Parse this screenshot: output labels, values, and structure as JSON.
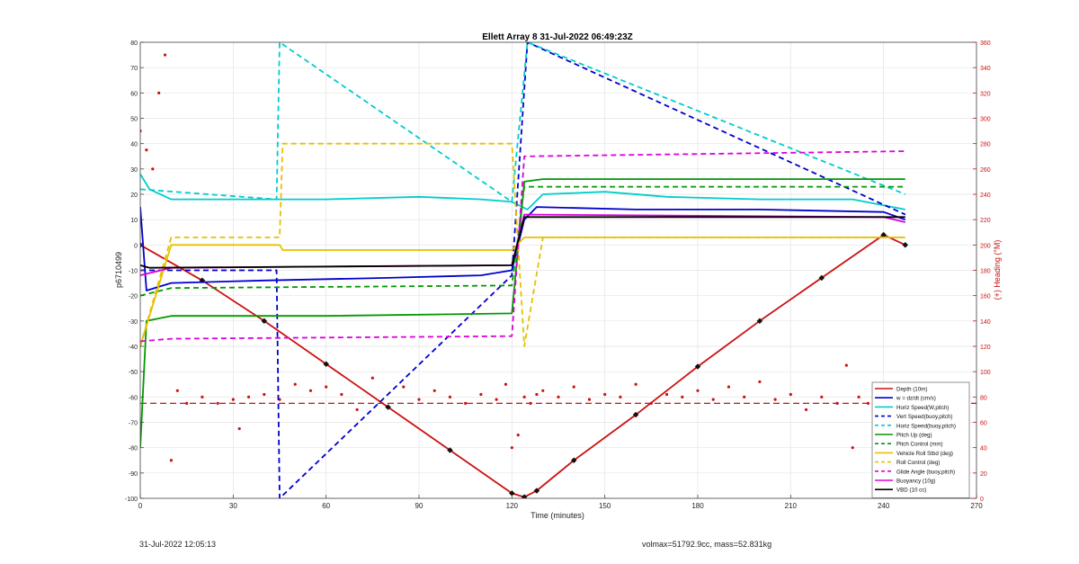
{
  "chart_data": {
    "type": "line",
    "title": "Ellett Array 8 31-Jul-2022 06:49:23Z",
    "xlabel": "Time (minutes)",
    "ylabel_left": "p6710499",
    "ylabel_right": "(+) Heading (°M)",
    "xlim": [
      0,
      270
    ],
    "ylim_left": [
      -100,
      80
    ],
    "ylim_right": [
      0,
      360
    ],
    "x_ticks": [
      0,
      30,
      60,
      90,
      120,
      150,
      180,
      210,
      240,
      270
    ],
    "y_ticks_left": [
      80,
      70,
      60,
      50,
      40,
      30,
      20,
      10,
      0,
      -10,
      -20,
      -30,
      -40,
      -50,
      -60,
      -70,
      -80,
      -90,
      -100
    ],
    "y_ticks_right": [
      360,
      340,
      320,
      300,
      280,
      260,
      240,
      220,
      200,
      180,
      160,
      140,
      120,
      100,
      80,
      60,
      40,
      20,
      0
    ],
    "grid": true,
    "legend_position": "bottom-right",
    "series": [
      {
        "name": "Depth (10m)",
        "color": "#cc1111",
        "style": "solid",
        "marker": "diamond",
        "x": [
          0,
          20,
          40,
          60,
          80,
          100,
          120,
          124,
          128,
          140,
          160,
          180,
          200,
          220,
          240,
          247
        ],
        "y": [
          0,
          -14,
          -30,
          -47,
          -64,
          -81,
          -98,
          -99.5,
          -97,
          -85,
          -67,
          -48,
          -30,
          -13,
          4,
          0
        ]
      },
      {
        "name": "w = dz/dt (cm/s)",
        "color": "#0000cc",
        "style": "solid",
        "x": [
          0,
          2,
          10,
          40,
          80,
          110,
          120,
          124,
          128,
          160,
          200,
          240,
          247
        ],
        "y": [
          15,
          -18,
          -15,
          -14,
          -13,
          -12,
          -10,
          10,
          15,
          14,
          14,
          13,
          10
        ]
      },
      {
        "name": "Horiz Speed(W,pitch)",
        "color": "#00cccc",
        "style": "solid",
        "x": [
          0,
          3,
          10,
          30,
          60,
          90,
          110,
          120,
          125,
          130,
          150,
          170,
          200,
          230,
          247
        ],
        "y": [
          28,
          22,
          18,
          18,
          18,
          19,
          18,
          17,
          14,
          20,
          21,
          19,
          18,
          18,
          14
        ]
      },
      {
        "name": "Vert Speed(buoy,pitch)",
        "color": "#0000cc",
        "style": "dashed",
        "x": [
          0,
          44,
          45,
          120,
          125,
          247
        ],
        "y": [
          -10,
          -10,
          -100,
          -12,
          80,
          12
        ]
      },
      {
        "name": "Horiz Speed(buoy,pitch)",
        "color": "#00cccc",
        "style": "dashed",
        "x": [
          0,
          44,
          45,
          120,
          125,
          247
        ],
        "y": [
          22,
          18,
          80,
          17,
          80,
          20
        ]
      },
      {
        "name": "Pitch Up (deg)",
        "color": "#009900",
        "style": "solid",
        "x": [
          0,
          2,
          10,
          60,
          120,
          124,
          130,
          200,
          247
        ],
        "y": [
          -80,
          -30,
          -28,
          -28,
          -27,
          25,
          26,
          26,
          26
        ]
      },
      {
        "name": "Pitch Control (mm)",
        "color": "#009900",
        "style": "dashed",
        "x": [
          0,
          10,
          120,
          124,
          247
        ],
        "y": [
          -20,
          -17,
          -16,
          23,
          23
        ]
      },
      {
        "name": "Vehicle Roll Stbd (deg)",
        "color": "#e6c000",
        "style": "solid",
        "x": [
          0,
          10,
          45,
          46,
          120,
          124,
          130,
          247
        ],
        "y": [
          -40,
          0,
          0,
          -2,
          -2,
          3,
          3,
          3
        ]
      },
      {
        "name": "Roll Control (deg)",
        "color": "#e6c000",
        "style": "dashed",
        "x": [
          0,
          10,
          45,
          46,
          120,
          124,
          130,
          247
        ],
        "y": [
          -40,
          3,
          3,
          40,
          40,
          -40,
          3,
          3
        ]
      },
      {
        "name": "Glide Angle (buoy,pitch)",
        "color": "#dd00dd",
        "style": "dashed",
        "x": [
          0,
          10,
          120,
          124,
          247
        ],
        "y": [
          -38,
          -37,
          -36,
          35,
          37
        ]
      },
      {
        "name": "Buoyancy (10g)",
        "color": "#dd00dd",
        "style": "solid",
        "x": [
          0,
          10,
          120,
          124,
          240,
          247
        ],
        "y": [
          -12,
          -9,
          -8,
          12,
          11,
          9
        ]
      },
      {
        "name": "VBD (10 cc)",
        "color": "#000000",
        "style": "solid",
        "x": [
          0,
          3,
          120,
          124,
          247
        ],
        "y": [
          -8,
          -9,
          -8,
          11,
          11
        ]
      }
    ],
    "heading": {
      "color": "#cc1111",
      "axis": "right",
      "mean": 75,
      "x": [
        0,
        2,
        4,
        6,
        8,
        10,
        12,
        15,
        20,
        25,
        30,
        32,
        35,
        40,
        45,
        50,
        55,
        60,
        65,
        70,
        75,
        80,
        85,
        90,
        95,
        100,
        105,
        110,
        115,
        118,
        120,
        122,
        124,
        126,
        128,
        130,
        135,
        140,
        145,
        150,
        155,
        160,
        165,
        170,
        175,
        180,
        185,
        190,
        195,
        200,
        205,
        210,
        215,
        220,
        225,
        228,
        230,
        232,
        235,
        240,
        245,
        247
      ],
      "y": [
        290,
        275,
        260,
        320,
        350,
        30,
        85,
        75,
        80,
        75,
        78,
        55,
        80,
        82,
        78,
        90,
        85,
        88,
        82,
        70,
        95,
        72,
        88,
        78,
        85,
        80,
        75,
        82,
        78,
        90,
        40,
        50,
        80,
        75,
        82,
        85,
        80,
        88,
        78,
        82,
        80,
        90,
        75,
        82,
        80,
        85,
        78,
        88,
        80,
        92,
        78,
        82,
        70,
        80,
        75,
        105,
        40,
        80,
        75,
        85,
        78,
        80
      ]
    },
    "annotations": {
      "footer_left": "31-Jul-2022 12:05:13",
      "footer_right": "volmax=51792.9cc, mass=52.831kg"
    }
  }
}
